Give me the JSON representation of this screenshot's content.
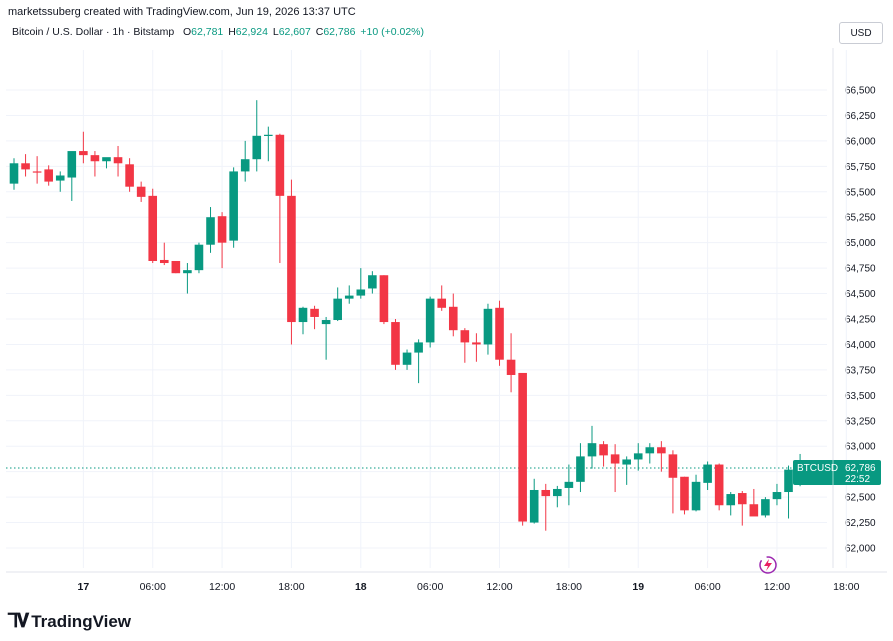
{
  "header": {
    "created_by": "marketssuberg created with TradingView.com, Jun 19, 2026 13:37 UTC"
  },
  "legend": {
    "symbol": "Bitcoin / U.S. Dollar · 1h · Bitstamp",
    "o_label": "O",
    "o_value": "62,781",
    "h_label": "H",
    "h_value": "62,924",
    "l_label": "L",
    "l_value": "62,607",
    "c_label": "C",
    "c_value": "62,786",
    "change": "+10 (+0.02%)"
  },
  "currency_button": "USD",
  "price_tag": {
    "symbol": "BTCUSD",
    "price": "62,786",
    "countdown": "22:52"
  },
  "footer": {
    "logo_text": "TradingView"
  },
  "colors": {
    "up": "#089981",
    "down": "#f23645",
    "grid": "#f0f3fa",
    "text": "#131722"
  },
  "chart_data": {
    "type": "candlestick",
    "yaxis_ticks": [
      62000,
      62250,
      62500,
      62750,
      63000,
      63250,
      63500,
      63750,
      64000,
      64250,
      64500,
      64750,
      65000,
      65250,
      65500,
      65750,
      66000,
      66250,
      66500
    ],
    "ytick_labels": [
      "62,000",
      "62,250",
      "62,500",
      "62,750",
      "63,000",
      "63,250",
      "63,500",
      "63,750",
      "64,000",
      "64,250",
      "64,500",
      "64,750",
      "65,000",
      "65,250",
      "65,500",
      "65,750",
      "66,000",
      "66,250",
      "66,500"
    ],
    "ylim": [
      61800,
      66650
    ],
    "xaxis_ticks": [
      {
        "bar": 6,
        "label": "17",
        "bold": true
      },
      {
        "bar": 12,
        "label": "06:00"
      },
      {
        "bar": 18,
        "label": "12:00"
      },
      {
        "bar": 24,
        "label": "18:00"
      },
      {
        "bar": 30,
        "label": "18",
        "bold": true
      },
      {
        "bar": 36,
        "label": "06:00"
      },
      {
        "bar": 42,
        "label": "12:00"
      },
      {
        "bar": 48,
        "label": "18:00"
      },
      {
        "bar": 54,
        "label": "19",
        "bold": true
      },
      {
        "bar": 60,
        "label": "06:00"
      },
      {
        "bar": 66,
        "label": "12:00"
      },
      {
        "bar": 72,
        "label": "18:00"
      }
    ],
    "last_price": 62786,
    "candles": [
      [
        65580,
        65830,
        65520,
        65780
      ],
      [
        65780,
        65870,
        65650,
        65720
      ],
      [
        65700,
        65850,
        65580,
        65690
      ],
      [
        65720,
        65760,
        65560,
        65600
      ],
      [
        65610,
        65700,
        65500,
        65660
      ],
      [
        65640,
        65880,
        65410,
        65900
      ],
      [
        65900,
        66090,
        65780,
        65860
      ],
      [
        65860,
        65900,
        65650,
        65800
      ],
      [
        65800,
        65830,
        65730,
        65840
      ],
      [
        65840,
        65950,
        65650,
        65780
      ],
      [
        65770,
        65830,
        65500,
        65550
      ],
      [
        65550,
        65600,
        65400,
        65450
      ],
      [
        65460,
        65530,
        64800,
        64820
      ],
      [
        64830,
        65000,
        64780,
        64800
      ],
      [
        64820,
        64820,
        64700,
        64700
      ],
      [
        64700,
        64800,
        64500,
        64730
      ],
      [
        64730,
        65000,
        64700,
        64980
      ],
      [
        64980,
        65350,
        64900,
        65250
      ],
      [
        65260,
        65300,
        64750,
        65000
      ],
      [
        65020,
        65740,
        64950,
        65700
      ],
      [
        65700,
        66000,
        65600,
        65820
      ],
      [
        65820,
        66400,
        65700,
        66050
      ],
      [
        66050,
        66140,
        65800,
        66060
      ],
      [
        66060,
        66070,
        64800,
        65460
      ],
      [
        65460,
        65620,
        64000,
        64220
      ],
      [
        64220,
        64370,
        64100,
        64360
      ],
      [
        64350,
        64380,
        64150,
        64270
      ],
      [
        64200,
        64270,
        63850,
        64240
      ],
      [
        64240,
        64560,
        64230,
        64450
      ],
      [
        64450,
        64580,
        64400,
        64480
      ],
      [
        64480,
        64750,
        64450,
        64540
      ],
      [
        64550,
        64720,
        64500,
        64680
      ],
      [
        64680,
        64680,
        64200,
        64220
      ],
      [
        64220,
        64250,
        63750,
        63800
      ],
      [
        63800,
        63950,
        63750,
        63920
      ],
      [
        63920,
        64050,
        63620,
        64020
      ],
      [
        64020,
        64470,
        63970,
        64450
      ],
      [
        64450,
        64580,
        64330,
        64360
      ],
      [
        64370,
        64500,
        64080,
        64140
      ],
      [
        64140,
        64160,
        63820,
        64020
      ],
      [
        64020,
        64110,
        63830,
        64000
      ],
      [
        64000,
        64400,
        63900,
        64350
      ],
      [
        64360,
        64430,
        63790,
        63850
      ],
      [
        63850,
        64110,
        63530,
        63700
      ],
      [
        63720,
        63720,
        62220,
        62260
      ],
      [
        62250,
        62680,
        62240,
        62570
      ],
      [
        62570,
        62630,
        62170,
        62510
      ],
      [
        62510,
        62610,
        62400,
        62580
      ],
      [
        62590,
        62820,
        62420,
        62650
      ],
      [
        62650,
        63030,
        62550,
        62900
      ],
      [
        62900,
        63200,
        62780,
        63030
      ],
      [
        63020,
        63050,
        62800,
        62910
      ],
      [
        62920,
        63020,
        62550,
        62830
      ],
      [
        62820,
        62900,
        62620,
        62870
      ],
      [
        62870,
        63030,
        62760,
        62930
      ],
      [
        62930,
        63030,
        62830,
        62990
      ],
      [
        62990,
        63050,
        62750,
        62930
      ],
      [
        62920,
        62960,
        62340,
        62690
      ],
      [
        62700,
        62700,
        62330,
        62370
      ],
      [
        62370,
        62720,
        62360,
        62650
      ],
      [
        62640,
        62850,
        62570,
        62820
      ],
      [
        62820,
        62830,
        62370,
        62420
      ],
      [
        62420,
        62550,
        62320,
        62530
      ],
      [
        62540,
        62560,
        62220,
        62430
      ],
      [
        62430,
        62580,
        62320,
        62310
      ],
      [
        62320,
        62500,
        62300,
        62480
      ],
      [
        62480,
        62630,
        62420,
        62550
      ],
      [
        62550,
        62810,
        62290,
        62770
      ],
      [
        62781,
        62924,
        62607,
        62786
      ]
    ]
  }
}
